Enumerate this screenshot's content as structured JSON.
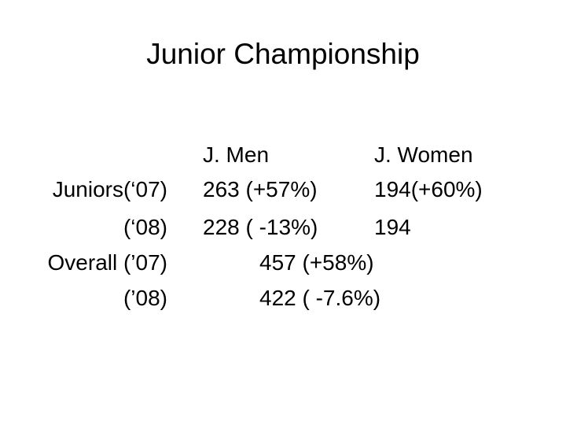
{
  "header": {
    "title": "Junior Championship"
  },
  "table": {
    "columns": [
      "J. Men",
      "J. Women"
    ],
    "rows": [
      {
        "label": "Juniors(‘07)",
        "men": "263 (+57%)",
        "women": "194(+60%)"
      },
      {
        "label": "(‘08)",
        "men": "228 ( -13%)",
        "women": "194"
      },
      {
        "label": "Overall (’07)",
        "overall": "457 (+58%)"
      },
      {
        "label": "(’08)",
        "overall": "422 ( -7.6%)"
      }
    ]
  }
}
